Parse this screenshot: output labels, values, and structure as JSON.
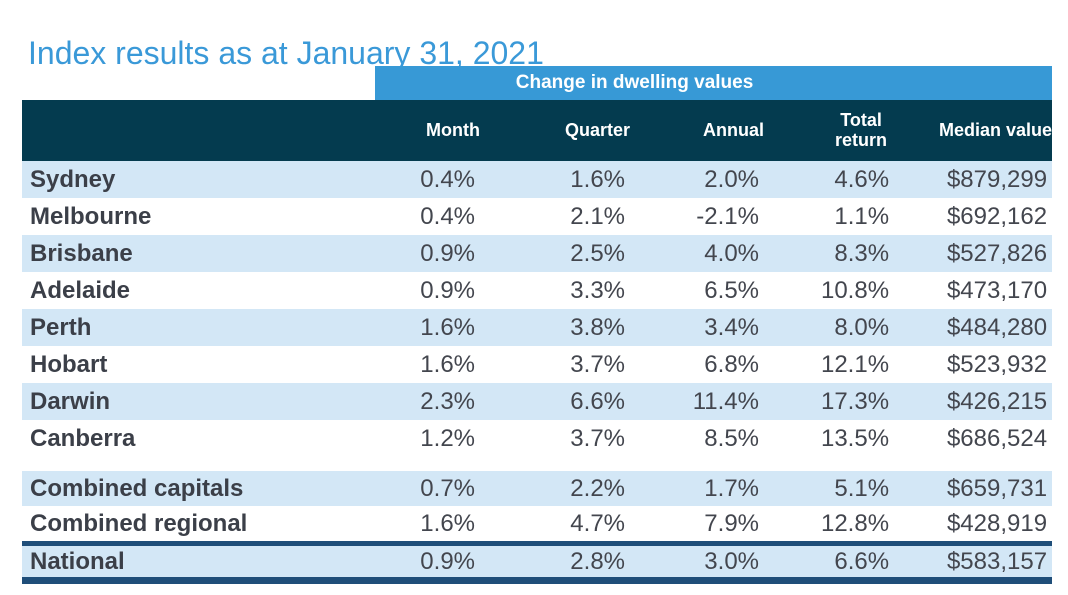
{
  "title": "Index results as at January 31, 2021",
  "table": {
    "band_title": "Change in dwelling values",
    "columns": [
      "Month",
      "Quarter",
      "Annual",
      "Total return",
      "Median value"
    ],
    "capital_rows": [
      {
        "label": "Sydney",
        "month": "0.4%",
        "quarter": "1.6%",
        "annual": "2.0%",
        "total_return": "4.6%",
        "median_value": "$879,299"
      },
      {
        "label": "Melbourne",
        "month": "0.4%",
        "quarter": "2.1%",
        "annual": "-2.1%",
        "total_return": "1.1%",
        "median_value": "$692,162"
      },
      {
        "label": "Brisbane",
        "month": "0.9%",
        "quarter": "2.5%",
        "annual": "4.0%",
        "total_return": "8.3%",
        "median_value": "$527,826"
      },
      {
        "label": "Adelaide",
        "month": "0.9%",
        "quarter": "3.3%",
        "annual": "6.5%",
        "total_return": "10.8%",
        "median_value": "$473,170"
      },
      {
        "label": "Perth",
        "month": "1.6%",
        "quarter": "3.8%",
        "annual": "3.4%",
        "total_return": "8.0%",
        "median_value": "$484,280"
      },
      {
        "label": "Hobart",
        "month": "1.6%",
        "quarter": "3.7%",
        "annual": "6.8%",
        "total_return": "12.1%",
        "median_value": "$523,932"
      },
      {
        "label": "Darwin",
        "month": "2.3%",
        "quarter": "6.6%",
        "annual": "11.4%",
        "total_return": "17.3%",
        "median_value": "$426,215"
      },
      {
        "label": "Canberra",
        "month": "1.2%",
        "quarter": "3.7%",
        "annual": "8.5%",
        "total_return": "13.5%",
        "median_value": "$686,524"
      }
    ],
    "combined_rows": [
      {
        "label": "Combined capitals",
        "month": "0.7%",
        "quarter": "2.2%",
        "annual": "1.7%",
        "total_return": "5.1%",
        "median_value": "$659,731"
      },
      {
        "label": "Combined regional",
        "month": "1.6%",
        "quarter": "4.7%",
        "annual": "7.9%",
        "total_return": "12.8%",
        "median_value": "$428,919"
      }
    ],
    "national_row": {
      "label": "National",
      "month": "0.9%",
      "quarter": "2.8%",
      "annual": "3.0%",
      "total_return": "6.6%",
      "median_value": "$583,157"
    }
  },
  "colors": {
    "title_blue": "#3a99d8",
    "band_blue": "#3799d6",
    "header_teal": "#043b4f",
    "stripe_blue": "#d3e7f6",
    "border_navy": "#1f4e79",
    "label_text": "#3b3f48",
    "value_text": "#43464e"
  }
}
